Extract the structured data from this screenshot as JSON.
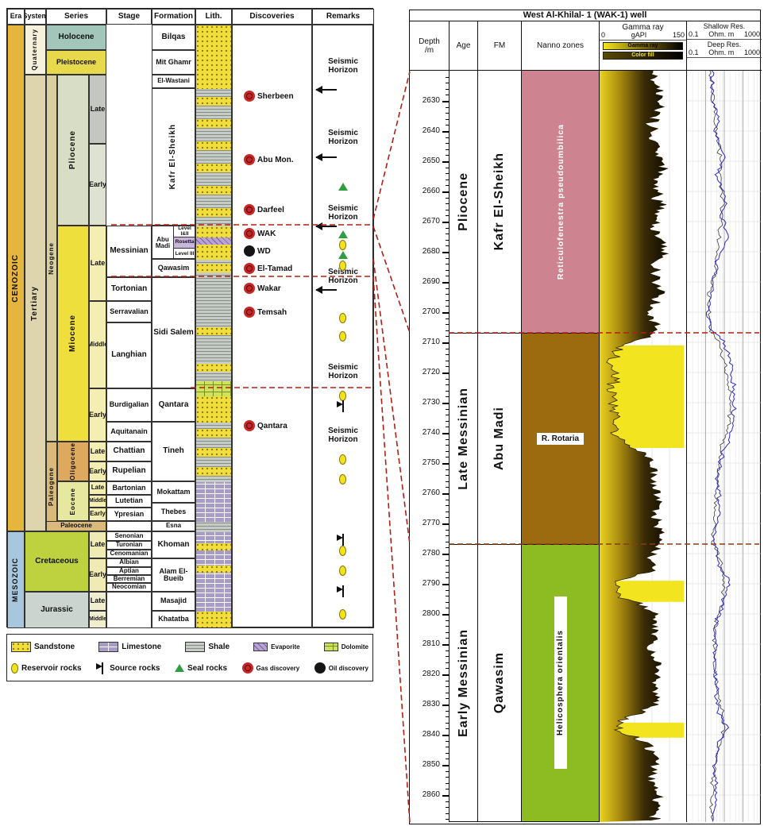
{
  "left": {
    "headers": {
      "era": "Era",
      "system": "System",
      "series": "Series",
      "stage": "Stage",
      "formation": "Formation",
      "lith": "Lith.",
      "discoveries": "Discoveries",
      "remarks": "Remarks"
    },
    "era": {
      "cenozoic": "CENOZOIC",
      "mesozoic": "MESOZOIC"
    },
    "system": {
      "quaternary": "Quaternary",
      "tertiary": "Tertiary",
      "cretaceous": "Cretaceous",
      "jurassic": "Jurassic"
    },
    "subsystem": {
      "neogene": "Neogene",
      "paleogene": "Paleogene"
    },
    "series": {
      "holocene": "Holocene",
      "pleistocene": "Pleistocene",
      "pliocene": "Pliocene",
      "miocene": "Miocene",
      "oligocene": "Oligocene",
      "eocene": "Eocene",
      "paleocene": "Paleocene"
    },
    "sub": {
      "late": "Late",
      "middle": "Middle",
      "early": "Early"
    },
    "stages": [
      "Messinian",
      "Tortonian",
      "Serravalian",
      "Langhian",
      "Burdigalian",
      "Aquitanain",
      "Chattian",
      "Rupelian",
      "Bartonian",
      "Lutetian",
      "Ypresian",
      "Senonian",
      "Turonian",
      "Cenomanian",
      "Albian",
      "Aptian",
      "Berremian",
      "Neocomian"
    ],
    "formations": [
      "Bilqas",
      "Mit Ghamr",
      "El-Wastani",
      "Kafr El-Sheikh",
      "Abu Madi",
      "Qawasim",
      "Sidi Salem",
      "Qantara",
      "Tineh",
      "Mokattam",
      "Thebes",
      "Esna",
      "Khoman",
      "Alam El-Bueib",
      "Masajid",
      "Khatatba"
    ],
    "abu_madi_levels": [
      "Level I&II",
      "Rosetta",
      "Level III"
    ],
    "discoveries": [
      {
        "label": "Sherbeen",
        "type": "gas"
      },
      {
        "label": "Abu Mon.",
        "type": "gas"
      },
      {
        "label": "Darfeel",
        "type": "gas"
      },
      {
        "label": "WAK",
        "type": "gas"
      },
      {
        "label": "WD",
        "type": "oil"
      },
      {
        "label": "El-Tamad",
        "type": "gas"
      },
      {
        "label": "Wakar",
        "type": "gas"
      },
      {
        "label": "Temsah",
        "type": "gas"
      },
      {
        "label": "Qantara",
        "type": "gas"
      }
    ],
    "remarks": {
      "seismic": "Seismic Horizon"
    },
    "legend": {
      "sandstone": "Sandstone",
      "limestone": "Limestone",
      "shale": "Shale",
      "evaporite": "Evaporite",
      "dolomite": "Dolomite",
      "reservoir": "Reservoir rocks",
      "source": "Source rocks",
      "seal": "Seal rocks",
      "gas": "Gas discovery",
      "oil": "Oil discovery"
    }
  },
  "right": {
    "title": "West Al-Khilal- 1 (WAK-1) well",
    "columns": {
      "depth": "Depth /m",
      "age": "Age",
      "fm": "FM",
      "nanno": "Nanno zones",
      "gamma": "Gamma ray",
      "shallow": "Shallow Res.",
      "deep": "Deep Res."
    },
    "gamma_scale": {
      "min": "0",
      "unit": "gAPI",
      "max": "150",
      "bar1": "Gamma ray",
      "bar2": "Color fill"
    },
    "res_scale": {
      "min": "0.1",
      "unit": "Ohm. m",
      "max": "1000"
    }
  },
  "chart_data": {
    "type": "line",
    "title": "West Al-Khilal- 1 (WAK-1) well",
    "depth_axis": {
      "label": "Depth /m",
      "min": 2620,
      "max": 2869,
      "first_label": 2630,
      "last_label": 2860,
      "label_step": 10
    },
    "zones": [
      {
        "name": "Reticulofenestra pseudoumbilica",
        "age": "Pliocene",
        "fm": "Kafr El-Sheikh",
        "top": 2620,
        "base": 2707,
        "color": "#ce8490"
      },
      {
        "name": "R. Rotaria",
        "age": "Late Messinian",
        "fm": "Abu Madi",
        "top": 2707,
        "base": 2777,
        "color": "#9c6b10"
      },
      {
        "name": "Helicosphera orientalis",
        "age": "Early Messinian",
        "fm": "Qawasim",
        "top": 2777,
        "base": 2869,
        "color": "#8cbb22"
      }
    ],
    "boundaries": [
      {
        "depth": 2707,
        "between": [
          "Kafr El-Sheikh",
          "Abu Madi"
        ]
      },
      {
        "depth": 2777,
        "between": [
          "Abu Madi",
          "Qawasim"
        ]
      }
    ],
    "gamma_ray": {
      "unit": "gAPI",
      "min": 0,
      "max": 150,
      "sand_intervals": [
        [
          2711,
          2745
        ],
        [
          2789,
          2796
        ],
        [
          2836,
          2841
        ]
      ],
      "points": [
        [
          2620,
          95
        ],
        [
          2632,
          102
        ],
        [
          2638,
          88
        ],
        [
          2645,
          98
        ],
        [
          2652,
          108
        ],
        [
          2658,
          92
        ],
        [
          2665,
          103
        ],
        [
          2672,
          96
        ],
        [
          2680,
          110
        ],
        [
          2686,
          93
        ],
        [
          2694,
          104
        ],
        [
          2700,
          84
        ],
        [
          2704,
          96
        ],
        [
          2708,
          88
        ],
        [
          2711,
          30
        ],
        [
          2716,
          22
        ],
        [
          2722,
          26
        ],
        [
          2728,
          22
        ],
        [
          2734,
          27
        ],
        [
          2740,
          24
        ],
        [
          2744,
          40
        ],
        [
          2747,
          78
        ],
        [
          2752,
          95
        ],
        [
          2757,
          86
        ],
        [
          2762,
          101
        ],
        [
          2768,
          92
        ],
        [
          2773,
          104
        ],
        [
          2777,
          96
        ],
        [
          2782,
          90
        ],
        [
          2786,
          84
        ],
        [
          2789,
          30
        ],
        [
          2793,
          26
        ],
        [
          2796,
          60
        ],
        [
          2800,
          92
        ],
        [
          2806,
          98
        ],
        [
          2812,
          88
        ],
        [
          2818,
          102
        ],
        [
          2824,
          94
        ],
        [
          2830,
          99
        ],
        [
          2836,
          32
        ],
        [
          2839,
          28
        ],
        [
          2842,
          75
        ],
        [
          2848,
          96
        ],
        [
          2854,
          88
        ],
        [
          2860,
          101
        ],
        [
          2866,
          94
        ],
        [
          2869,
          97
        ]
      ]
    },
    "resistivity": {
      "unit": "Ohm. m",
      "min": 0.1,
      "max": 1000,
      "log": true,
      "deep_points": [
        [
          2620,
          2.5
        ],
        [
          2630,
          2
        ],
        [
          2636,
          5
        ],
        [
          2642,
          3
        ],
        [
          2648,
          9
        ],
        [
          2655,
          4
        ],
        [
          2662,
          12
        ],
        [
          2668,
          6
        ],
        [
          2675,
          15
        ],
        [
          2681,
          5
        ],
        [
          2688,
          3
        ],
        [
          2695,
          1.8
        ],
        [
          2701,
          1.2
        ],
        [
          2706,
          2
        ],
        [
          2712,
          12
        ],
        [
          2720,
          28
        ],
        [
          2730,
          35
        ],
        [
          2740,
          22
        ],
        [
          2746,
          8
        ],
        [
          2755,
          4
        ],
        [
          2765,
          6
        ],
        [
          2772,
          3.5
        ],
        [
          2777,
          3
        ],
        [
          2784,
          5
        ],
        [
          2790,
          18
        ],
        [
          2795,
          10
        ],
        [
          2802,
          4
        ],
        [
          2812,
          3
        ],
        [
          2822,
          3.5
        ],
        [
          2832,
          4
        ],
        [
          2838,
          14
        ],
        [
          2843,
          5
        ],
        [
          2850,
          3
        ],
        [
          2858,
          4
        ],
        [
          2865,
          3
        ],
        [
          2869,
          2.8
        ]
      ],
      "shallow_points": [
        [
          2620,
          2
        ],
        [
          2635,
          3
        ],
        [
          2650,
          6
        ],
        [
          2665,
          8
        ],
        [
          2680,
          4
        ],
        [
          2695,
          1.5
        ],
        [
          2706,
          1.8
        ],
        [
          2715,
          8
        ],
        [
          2725,
          18
        ],
        [
          2735,
          20
        ],
        [
          2745,
          6
        ],
        [
          2760,
          3.5
        ],
        [
          2777,
          2.5
        ],
        [
          2790,
          10
        ],
        [
          2805,
          3
        ],
        [
          2820,
          2.8
        ],
        [
          2838,
          9
        ],
        [
          2852,
          2.6
        ],
        [
          2869,
          2.2
        ]
      ]
    }
  }
}
